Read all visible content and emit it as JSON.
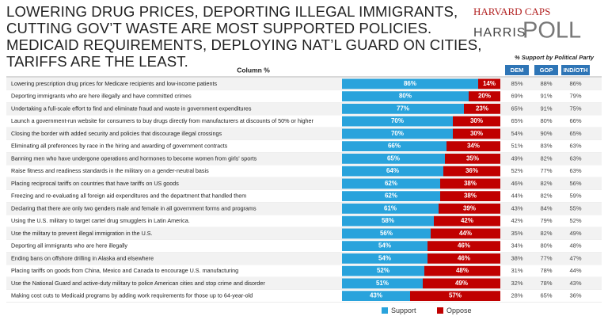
{
  "header": {
    "title": "LOWERING DRUG PRICES, DEPORTING ILLEGAL IMMIGRANTS, CUTTING GOV’T WASTE ARE MOST SUPPORTED POLICIES. MEDICAID REQUIREMENTS, DEPLOYING NAT’L GUARD ON CITIES, TARIFFS ARE THE LEAST.",
    "logo": [
      "HARVARD CAPS",
      "HARRIS",
      "POLL"
    ]
  },
  "chart_data": {
    "type": "stacked-bar-horizontal",
    "categories": [
      "Lowering prescription drug prices for Medicare recipients and low-income patients",
      "Deporting immigrants who are here illegally and have committed crimes",
      "Undertaking a full-scale effort to find and eliminate fraud and waste in government expenditures",
      "Launch a government-run website for consumers to buy drugs directly from manufacturers at discounts of 50% or higher",
      "Closing the border with added security and policies that discourage illegal crossings",
      "Eliminating all preferences by race in the hiring and awarding of government contracts",
      "Banning men who have undergone operations and hormones to become women from girls' sports",
      "Raise fitness and readiness standards in the military on a gender-neutral basis",
      "Placing reciprocal tariffs on countries that have tariffs on US goods",
      "Freezing and re-evaluating all foreign aid expenditures and the department that handled them",
      "Declaring that there are only two genders male and female in all government forms and programs",
      "Using the U.S. military to target cartel drug smugglers in Latin America.",
      "Use the military to prevent illegal immigration in the U.S.",
      "Deporting all immigrants who are here illegally",
      "Ending bans on offshore drilling in Alaska and elsewhere",
      "Placing tariffs on goods from China, Mexico and Canada to encourage U.S. manufacturing",
      "Use the National Guard and active-duty military to police American cities and stop crime and disorder",
      "Making cost cuts to Medicaid programs by adding work requirements for those up to 64-year-old"
    ],
    "series": [
      {
        "name": "Support",
        "color": "#29a3dc",
        "values": [
          86,
          80,
          77,
          70,
          70,
          66,
          65,
          64,
          62,
          62,
          61,
          58,
          56,
          54,
          54,
          52,
          51,
          43
        ],
        "value_labels": [
          "86%",
          "80%",
          "77%",
          "70%",
          "70%",
          "66%",
          "65%",
          "64%",
          "62%",
          "62%",
          "61%",
          "58%",
          "56%",
          "54%",
          "54%",
          "52%",
          "51%",
          "43%"
        ]
      },
      {
        "name": "Oppose",
        "color": "#c00000",
        "values": [
          14,
          20,
          23,
          30,
          30,
          34,
          35,
          36,
          38,
          38,
          39,
          42,
          44,
          46,
          46,
          48,
          49,
          57
        ],
        "value_labels": [
          "14%",
          "20%",
          "23%",
          "30%",
          "30%",
          "34%",
          "35%",
          "36%",
          "38%",
          "38%",
          "39%",
          "42%",
          "44%",
          "46%",
          "46%",
          "48%",
          "49%",
          "57%"
        ]
      }
    ],
    "xlim": [
      0,
      100
    ]
  },
  "table": {
    "column_header": "Column %",
    "party_header": "% Support by Political Party",
    "columns": [
      "DEM",
      "GOP",
      "IND/OTH"
    ],
    "rows": [
      [
        "85%",
        "88%",
        "86%"
      ],
      [
        "69%",
        "91%",
        "79%"
      ],
      [
        "65%",
        "91%",
        "75%"
      ],
      [
        "65%",
        "80%",
        "66%"
      ],
      [
        "54%",
        "90%",
        "65%"
      ],
      [
        "51%",
        "83%",
        "63%"
      ],
      [
        "49%",
        "82%",
        "63%"
      ],
      [
        "52%",
        "77%",
        "63%"
      ],
      [
        "46%",
        "82%",
        "56%"
      ],
      [
        "44%",
        "82%",
        "59%"
      ],
      [
        "43%",
        "84%",
        "55%"
      ],
      [
        "42%",
        "79%",
        "52%"
      ],
      [
        "35%",
        "82%",
        "49%"
      ],
      [
        "34%",
        "80%",
        "48%"
      ],
      [
        "38%",
        "77%",
        "47%"
      ],
      [
        "31%",
        "78%",
        "44%"
      ],
      [
        "32%",
        "78%",
        "43%"
      ],
      [
        "28%",
        "65%",
        "36%"
      ]
    ]
  }
}
